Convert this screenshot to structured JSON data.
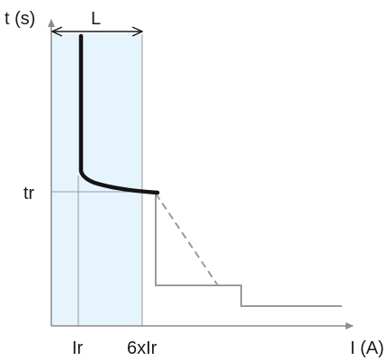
{
  "diagram": {
    "y_axis_label": "t (s)",
    "x_axis_label": "I (A)",
    "band_label": "L",
    "tr_label": "tr",
    "ir_label": "Ir",
    "six_ir_label": "6xIr"
  },
  "colors": {
    "band_fill": "#e6f4fd",
    "axis": "#8c8c8c",
    "thin_lines": "#9a9a9a",
    "curve": "#141414",
    "text": "#1a1a1a"
  }
}
